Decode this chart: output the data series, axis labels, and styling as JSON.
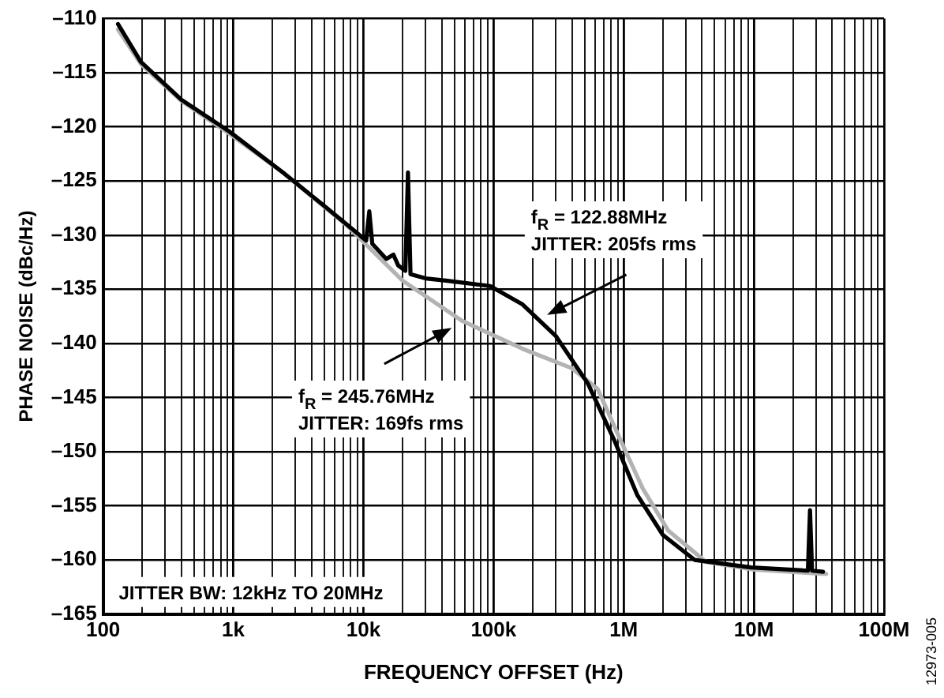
{
  "chart_data": {
    "type": "line",
    "xlabel": "FREQUENCY OFFSET (Hz)",
    "ylabel": "PHASE NOISE (dBc/Hz)",
    "log": "x",
    "xlim": [
      100,
      100000000
    ],
    "xticks": [
      {
        "value": 100,
        "label": "100"
      },
      {
        "value": 200,
        "label": null
      },
      {
        "value": 300,
        "label": null
      },
      {
        "value": 400,
        "label": null
      },
      {
        "value": 500,
        "label": null
      },
      {
        "value": 600,
        "label": null
      },
      {
        "value": 700,
        "label": null
      },
      {
        "value": 800,
        "label": null
      },
      {
        "value": 900,
        "label": null
      },
      {
        "value": 1000,
        "label": "1k"
      },
      {
        "value": 2000,
        "label": null
      },
      {
        "value": 3000,
        "label": null
      },
      {
        "value": 4000,
        "label": null
      },
      {
        "value": 5000,
        "label": null
      },
      {
        "value": 6000,
        "label": null
      },
      {
        "value": 7000,
        "label": null
      },
      {
        "value": 8000,
        "label": null
      },
      {
        "value": 9000,
        "label": null
      },
      {
        "value": 10000,
        "label": "10k"
      },
      {
        "value": 20000,
        "label": null
      },
      {
        "value": 30000,
        "label": null
      },
      {
        "value": 40000,
        "label": null
      },
      {
        "value": 50000,
        "label": null
      },
      {
        "value": 60000,
        "label": null
      },
      {
        "value": 70000,
        "label": null
      },
      {
        "value": 80000,
        "label": null
      },
      {
        "value": 90000,
        "label": null
      },
      {
        "value": 100000,
        "label": "100k"
      },
      {
        "value": 200000,
        "label": null
      },
      {
        "value": 300000,
        "label": null
      },
      {
        "value": 400000,
        "label": null
      },
      {
        "value": 500000,
        "label": null
      },
      {
        "value": 600000,
        "label": null
      },
      {
        "value": 700000,
        "label": null
      },
      {
        "value": 800000,
        "label": null
      },
      {
        "value": 900000,
        "label": null
      },
      {
        "value": 1000000,
        "label": "1M"
      },
      {
        "value": 2000000,
        "label": null
      },
      {
        "value": 3000000,
        "label": null
      },
      {
        "value": 4000000,
        "label": null
      },
      {
        "value": 5000000,
        "label": null
      },
      {
        "value": 6000000,
        "label": null
      },
      {
        "value": 7000000,
        "label": null
      },
      {
        "value": 8000000,
        "label": null
      },
      {
        "value": 9000000,
        "label": null
      },
      {
        "value": 10000000,
        "label": "10M"
      },
      {
        "value": 20000000,
        "label": null
      },
      {
        "value": 30000000,
        "label": null
      },
      {
        "value": 40000000,
        "label": null
      },
      {
        "value": 50000000,
        "label": null
      },
      {
        "value": 60000000,
        "label": null
      },
      {
        "value": 70000000,
        "label": null
      },
      {
        "value": 80000000,
        "label": null
      },
      {
        "value": 90000000,
        "label": null
      },
      {
        "value": 100000000,
        "label": "100M"
      }
    ],
    "ylim": [
      -165,
      -110
    ],
    "yticks": [
      {
        "value": -165,
        "label": "–165"
      },
      {
        "value": -160,
        "label": "–160"
      },
      {
        "value": -155,
        "label": "–155"
      },
      {
        "value": -150,
        "label": "–150"
      },
      {
        "value": -145,
        "label": "–145"
      },
      {
        "value": -140,
        "label": "–140"
      },
      {
        "value": -135,
        "label": "–135"
      },
      {
        "value": -130,
        "label": "–130"
      },
      {
        "value": -125,
        "label": "–125"
      },
      {
        "value": -120,
        "label": "–120"
      },
      {
        "value": -115,
        "label": "–115"
      },
      {
        "value": -110,
        "label": "–110"
      }
    ],
    "grid": true,
    "legend": false,
    "marker": "none",
    "line_style": "solid",
    "series": [
      {
        "color": "#000000",
        "x": [
          130,
          195,
          400,
          925,
          2400,
          5000,
          7600,
          10500,
          11100,
          11700,
          15000,
          17000,
          18500,
          21000,
          22000,
          23000,
          30000,
          43000,
          94000,
          167000,
          300000,
          530000,
          850000,
          1270000,
          2000000,
          3500000,
          9500000,
          26000000,
          27000000,
          28000000,
          34000000
        ],
        "values": [
          -110.5,
          -114,
          -117.5,
          -120.4,
          -124.2,
          -127.3,
          -129.1,
          -130.5,
          -127.8,
          -130.8,
          -132.2,
          -131.8,
          -132.8,
          -133.3,
          -124.2,
          -133.6,
          -134,
          -134.2,
          -134.7,
          -136.4,
          -139.3,
          -143.7,
          -149,
          -154,
          -157.7,
          -160,
          -160.7,
          -161,
          -155.4,
          -161,
          -161.1
        ]
      },
      {
        "color": "#b3b3b3",
        "x": [
          130,
          195,
          400,
          925,
          2400,
          7600,
          20000,
          57000,
          167000,
          400000,
          630000,
          950000,
          1400000,
          2200000,
          4300000,
          10000000,
          36000000
        ],
        "values": [
          -111,
          -114.2,
          -117.6,
          -120.6,
          -124.2,
          -129.2,
          -134.2,
          -137.9,
          -140.5,
          -142.3,
          -144.2,
          -149,
          -153.4,
          -157.3,
          -160.2,
          -160.9,
          -161.3
        ]
      }
    ],
    "annotations": [
      "f$_{R}$ = 122.88MHz\nJITTER: 205fs rms",
      "f$_{R}$ = 245.76MHz\nJITTER: 169fs rms",
      "JITTER BW: 12kHz TO 20MHz",
      "12973-005"
    ]
  }
}
